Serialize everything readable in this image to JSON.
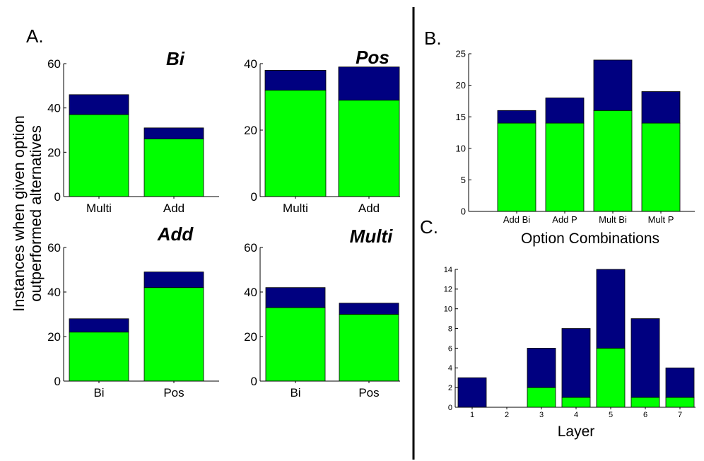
{
  "panels": {
    "a_label": "A.",
    "b_label": "B.",
    "c_label": "C.",
    "shared_ylabel_line1": "Instances when given option",
    "shared_ylabel_line2": "outperformed alternatives"
  },
  "colors": {
    "green": "#00ff00",
    "navy": "#000080",
    "axis": "#000000"
  },
  "chart_data": [
    {
      "id": "a1",
      "type": "bar",
      "stacked": true,
      "title": "Bi",
      "categories": [
        "Multi",
        "Add"
      ],
      "yticks": [
        "0",
        "20",
        "40",
        "60"
      ],
      "ylim": [
        0,
        60
      ],
      "series": [
        {
          "color": "green",
          "values": [
            37,
            26
          ]
        },
        {
          "color": "navy",
          "values": [
            9,
            5
          ]
        }
      ]
    },
    {
      "id": "a2",
      "type": "bar",
      "stacked": true,
      "title": "Pos",
      "categories": [
        "Multi",
        "Add"
      ],
      "yticks": [
        "0",
        "20",
        "40"
      ],
      "ylim": [
        0,
        40
      ],
      "series": [
        {
          "color": "green",
          "values": [
            32,
            29
          ]
        },
        {
          "color": "navy",
          "values": [
            6,
            10
          ]
        }
      ]
    },
    {
      "id": "a3",
      "type": "bar",
      "stacked": true,
      "title": "Add",
      "categories": [
        "Bi",
        "Pos"
      ],
      "yticks": [
        "0",
        "20",
        "40",
        "60"
      ],
      "ylim": [
        0,
        60
      ],
      "series": [
        {
          "color": "green",
          "values": [
            22,
            42
          ]
        },
        {
          "color": "navy",
          "values": [
            6,
            7
          ]
        }
      ]
    },
    {
      "id": "a4",
      "type": "bar",
      "stacked": true,
      "title": "Multi",
      "categories": [
        "Bi",
        "Pos"
      ],
      "yticks": [
        "0",
        "20",
        "40",
        "60"
      ],
      "ylim": [
        0,
        60
      ],
      "series": [
        {
          "color": "green",
          "values": [
            33,
            30
          ]
        },
        {
          "color": "navy",
          "values": [
            9,
            5
          ]
        }
      ]
    },
    {
      "id": "b",
      "type": "bar",
      "stacked": true,
      "categories": [
        "Add Bi",
        "Add P",
        "Mult Bi",
        "Mult P"
      ],
      "yticks": [
        "0",
        "5",
        "10",
        "15",
        "20",
        "25"
      ],
      "ylim": [
        0,
        25
      ],
      "xlabel": "Option Combinations",
      "series": [
        {
          "color": "green",
          "values": [
            14,
            14,
            16,
            14
          ]
        },
        {
          "color": "navy",
          "values": [
            2,
            4,
            8,
            5
          ]
        }
      ]
    },
    {
      "id": "c",
      "type": "bar",
      "stacked": true,
      "categories": [
        "1",
        "2",
        "3",
        "4",
        "5",
        "6",
        "7"
      ],
      "yticks": [
        "0",
        "2",
        "4",
        "6",
        "8",
        "10",
        "12",
        "14"
      ],
      "ylim": [
        0,
        14
      ],
      "xlabel": "Layer",
      "series": [
        {
          "color": "green",
          "values": [
            0,
            0,
            2,
            1,
            6,
            1,
            1
          ]
        },
        {
          "color": "navy",
          "values": [
            3,
            0,
            4,
            7,
            8,
            8,
            3
          ]
        }
      ]
    }
  ]
}
